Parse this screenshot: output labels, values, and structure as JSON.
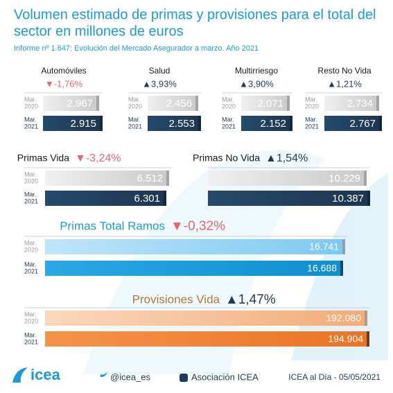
{
  "header": {
    "title_lines": [
      "Volumen estimado de primas y provisiones para el total del",
      "sector en millones de euros"
    ],
    "subtitle": "Informe nº 1.647: Evolución del Mercado Asegurador a marzo. Año 2021"
  },
  "panels": [
    {
      "name": "Automóviles",
      "change": "▼-1,76%",
      "direction": "down",
      "rows": [
        {
          "month": "Mar.",
          "year": "2020",
          "value": "2.967"
        },
        {
          "month": "Mar.",
          "year": "2021",
          "value": "2.915"
        }
      ]
    },
    {
      "name": "Salud",
      "change": "▲3,93%",
      "direction": "up",
      "rows": [
        {
          "month": "Mar.",
          "year": "2020",
          "value": "2.456"
        },
        {
          "month": "Mar.",
          "year": "2021",
          "value": "2.553"
        }
      ]
    },
    {
      "name": "Multirriesgo",
      "change": "▲3,90%",
      "direction": "up",
      "rows": [
        {
          "month": "Mar.",
          "year": "2020",
          "value": "2.071"
        },
        {
          "month": "Mar.",
          "year": "2021",
          "value": "2.152"
        }
      ]
    },
    {
      "name": "Resto No Vida",
      "change": "▲1,21%",
      "direction": "up",
      "rows": [
        {
          "month": "Mar.",
          "year": "2020",
          "value": "2.734"
        },
        {
          "month": "Mar.",
          "year": "2021",
          "value": "2.767"
        }
      ]
    },
    {
      "name": "Primas Vida",
      "change": "▼-3,24%",
      "direction": "down",
      "rows": [
        {
          "month": "Mar.",
          "year": "2020",
          "value": "6.512"
        },
        {
          "month": "Mar.",
          "year": "2021",
          "value": "6.301"
        }
      ]
    },
    {
      "name": "Primas No Vida",
      "change": "▲1,54%",
      "direction": "up",
      "rows": [
        {
          "month": "Mar.",
          "year": "2020",
          "value": "10.229"
        },
        {
          "month": "Mar.",
          "year": "2021",
          "value": "10.387"
        }
      ]
    },
    {
      "name": "Primas Total Ramos",
      "change": "▼-0,32%",
      "direction": "down",
      "rows": [
        {
          "month": "Mar.",
          "year": "2020",
          "value": "16.741"
        },
        {
          "month": "Mar.",
          "year": "2021",
          "value": "16.688"
        }
      ]
    },
    {
      "name": "Provisiones Vida",
      "change": "▲1,47%",
      "direction": "up",
      "rows": [
        {
          "month": "Mar.",
          "year": "2020",
          "value": "192.080"
        },
        {
          "month": "Mar.",
          "year": "2021",
          "value": "194.904"
        }
      ]
    }
  ],
  "footer": {
    "logo": "icea",
    "twitter": "@icea_es",
    "linkedin": "Asociación ICEA",
    "date": "ICEA al Día - 05/05/2021"
  }
}
